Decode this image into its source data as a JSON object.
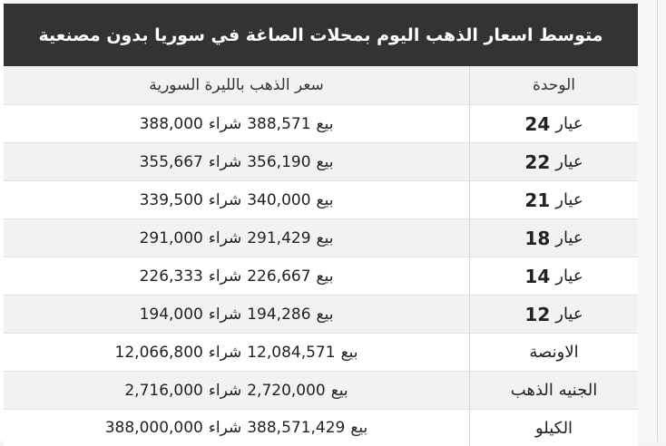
{
  "table": {
    "title": "متوسط اسعار الذهب اليوم بمحلات الصاغة في سوريا بدون مصنعية",
    "header": {
      "unit": "الوحدة",
      "price": "سعر الذهب بالليرة السورية"
    },
    "sell_label": "بيع",
    "buy_label": "شراء",
    "karat_word": "عيار",
    "rows": [
      {
        "karat": "24",
        "sell": "388,571",
        "buy": "388,000"
      },
      {
        "karat": "22",
        "sell": "356,190",
        "buy": "355,667"
      },
      {
        "karat": "21",
        "sell": "340,000",
        "buy": "339,500"
      },
      {
        "karat": "18",
        "sell": "291,429",
        "buy": "291,000"
      },
      {
        "karat": "14",
        "sell": "226,667",
        "buy": "226,333"
      },
      {
        "karat": "12",
        "sell": "194,286",
        "buy": "194,000"
      },
      {
        "unit": "الاونصة",
        "sell": "12,084,571",
        "buy": "12,066,800"
      },
      {
        "unit": "الجنيه الذهب",
        "sell": "2,720,000",
        "buy": "2,716,000"
      },
      {
        "unit": "الكيلو",
        "sell": "388,571,429",
        "buy": "388,000,000"
      }
    ]
  }
}
